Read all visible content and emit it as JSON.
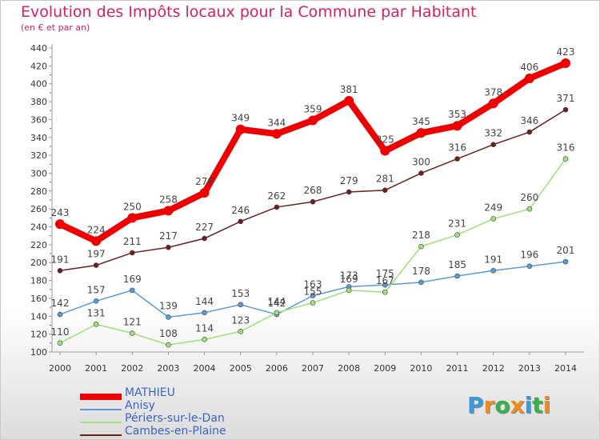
{
  "title": "Evolution des Impôts locaux pour la Commune par Habitant",
  "subtitle": "(en € et par an)",
  "logo": {
    "letters": [
      "P",
      "r",
      "o",
      "x",
      "i",
      "t",
      "i"
    ],
    "colors": [
      "#3a9ad9",
      "#f08c1e",
      "#3ab04a",
      "#f08c1e",
      "#3a9ad9",
      "#3ab04a",
      "#f08c1e"
    ]
  },
  "chart_data": {
    "type": "line",
    "title": "Evolution des Impôts locaux pour la Commune par Habitant",
    "subtitle": "(en € et par an)",
    "xlabel": "",
    "ylabel": "",
    "ylim": [
      100,
      440
    ],
    "yticks": [
      100,
      120,
      140,
      160,
      180,
      200,
      220,
      240,
      260,
      280,
      300,
      320,
      340,
      360,
      380,
      400,
      420,
      440
    ],
    "categories": [
      "2000",
      "2001",
      "2002",
      "2003",
      "2004",
      "2005",
      "2006",
      "2007",
      "2008",
      "2009",
      "2010",
      "2011",
      "2012",
      "2013",
      "2014"
    ],
    "grid": false,
    "legend_position": "bottom-left",
    "series": [
      {
        "name": "MATHIEU",
        "color": "#ee0000",
        "values": [
          243,
          224,
          250,
          258,
          278,
          349,
          344,
          359,
          381,
          325,
          345,
          353,
          378,
          406,
          423
        ]
      },
      {
        "name": "Anisy",
        "color": "#5b9bd5",
        "values": [
          142,
          157,
          169,
          139,
          144,
          153,
          142,
          163,
          173,
          175,
          178,
          185,
          191,
          196,
          201
        ]
      },
      {
        "name": "Périers-sur-le-Dan",
        "color": "#9ee07a",
        "values": [
          110,
          131,
          121,
          108,
          114,
          123,
          144,
          155,
          169,
          167,
          218,
          231,
          249,
          260,
          316
        ]
      },
      {
        "name": "Cambes-en-Plaine",
        "color": "#6b1f1f",
        "values": [
          191,
          197,
          211,
          217,
          227,
          246,
          262,
          268,
          279,
          281,
          300,
          316,
          332,
          346,
          371
        ]
      }
    ]
  }
}
